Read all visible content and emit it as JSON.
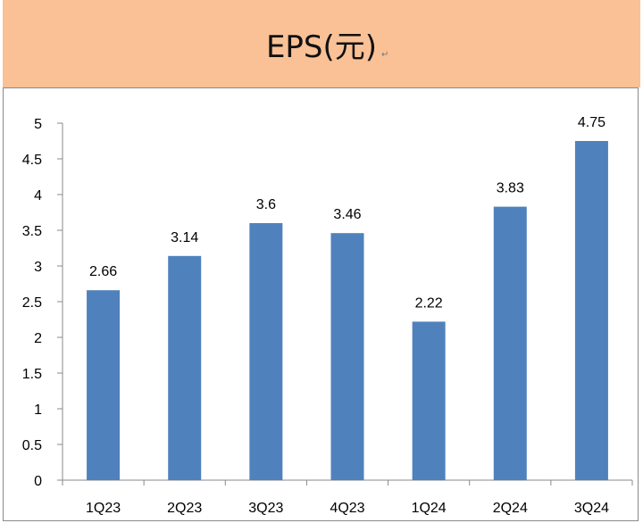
{
  "header": {
    "title": "EPS(元)",
    "return_mark": "↵"
  },
  "chart_data": {
    "type": "bar",
    "title": "EPS(元)",
    "categories": [
      "1Q23",
      "2Q23",
      "3Q23",
      "4Q23",
      "1Q24",
      "2Q24",
      "3Q24"
    ],
    "values": [
      2.66,
      3.14,
      3.6,
      3.46,
      2.22,
      3.83,
      4.75
    ],
    "data_labels": [
      "2.66",
      "3.14",
      "3.6",
      "3.46",
      "2.22",
      "3.83",
      "4.75"
    ],
    "ylim": [
      0,
      5
    ],
    "yticks": [
      0,
      0.5,
      1,
      1.5,
      2,
      2.5,
      3,
      3.5,
      4,
      4.5,
      5
    ],
    "ytick_labels": [
      "0",
      "0.5",
      "1",
      "1.5",
      "2",
      "2.5",
      "3",
      "3.5",
      "4",
      "4.5",
      "5"
    ],
    "xlabel": "",
    "ylabel": "",
    "grid": false,
    "legend": "none",
    "bar_color": "#4f81bd"
  }
}
